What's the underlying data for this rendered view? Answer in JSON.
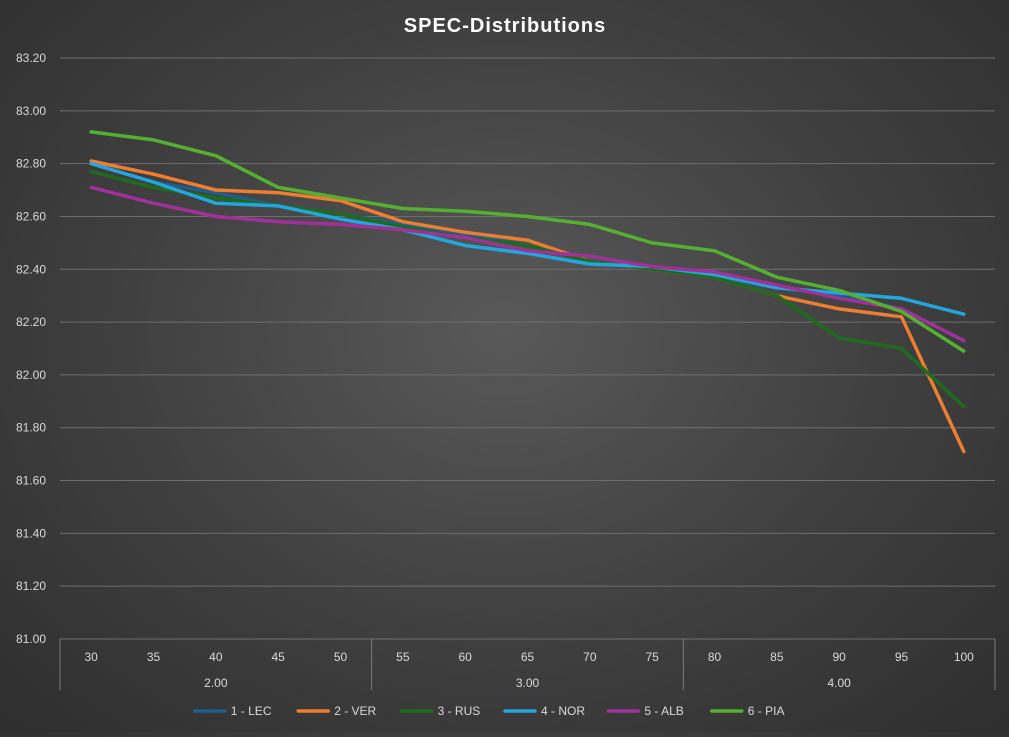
{
  "chart_data": {
    "type": "line",
    "title": "SPEC-Distributions",
    "xlabel": "",
    "ylabel": "",
    "ylim": [
      81.0,
      83.2
    ],
    "y_ticks": [
      "83.20",
      "83.00",
      "82.80",
      "82.60",
      "82.40",
      "82.20",
      "82.00",
      "81.80",
      "81.60",
      "81.40",
      "81.20",
      "81.00"
    ],
    "y_tick_values": [
      83.2,
      83.0,
      82.8,
      82.6,
      82.4,
      82.2,
      82.0,
      81.8,
      81.6,
      81.4,
      81.2,
      81.0
    ],
    "categories": [
      "30",
      "35",
      "40",
      "45",
      "50",
      "55",
      "60",
      "65",
      "70",
      "75",
      "80",
      "85",
      "90",
      "95",
      "100"
    ],
    "groups": [
      {
        "label": "2.00",
        "count": 5
      },
      {
        "label": "3.00",
        "count": 5
      },
      {
        "label": "4.00",
        "count": 5
      }
    ],
    "grid": true,
    "legend_position": "bottom",
    "series": [
      {
        "name": "1 - LEC",
        "color": "#1f5f8b",
        "values": [
          82.8,
          82.73,
          82.69,
          82.64,
          82.61,
          82.57,
          82.53,
          82.49,
          82.43,
          82.4,
          82.37,
          82.33,
          82.3,
          82.25,
          82.13
        ]
      },
      {
        "name": "2 - VER",
        "color": "#ed7d31",
        "values": [
          82.81,
          82.76,
          82.7,
          82.69,
          82.66,
          82.58,
          82.54,
          82.51,
          82.43,
          82.4,
          82.37,
          82.3,
          82.25,
          82.22,
          81.71
        ]
      },
      {
        "name": "3 - RUS",
        "color": "#1e6b1e",
        "values": [
          82.77,
          82.71,
          82.67,
          82.64,
          82.61,
          82.56,
          82.52,
          82.49,
          82.43,
          82.4,
          82.37,
          82.3,
          82.14,
          82.1,
          81.88
        ]
      },
      {
        "name": "4 - NOR",
        "color": "#23a6de",
        "values": [
          82.8,
          82.73,
          82.65,
          82.64,
          82.59,
          82.55,
          82.49,
          82.46,
          82.42,
          82.41,
          82.38,
          82.33,
          82.31,
          82.29,
          82.23
        ]
      },
      {
        "name": "5 - ALB",
        "color": "#a0309a",
        "values": [
          82.71,
          82.65,
          82.6,
          82.58,
          82.57,
          82.55,
          82.52,
          82.47,
          82.45,
          82.41,
          82.39,
          82.34,
          82.29,
          82.25,
          82.13
        ]
      },
      {
        "name": "6 - PIA",
        "color": "#55b032",
        "values": [
          82.92,
          82.89,
          82.83,
          82.71,
          82.67,
          82.63,
          82.62,
          82.6,
          82.57,
          82.5,
          82.47,
          82.37,
          82.32,
          82.24,
          82.09
        ]
      }
    ]
  }
}
